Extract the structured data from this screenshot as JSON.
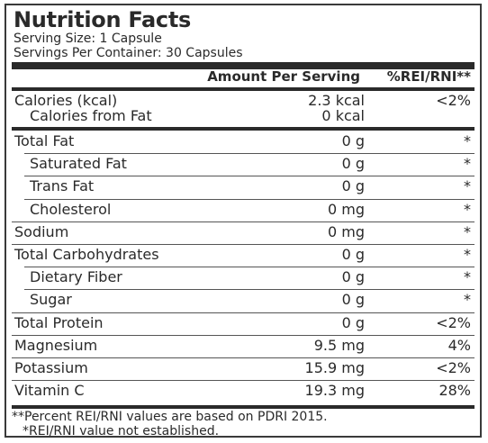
{
  "title": "Nutrition Facts",
  "serving_size": "Serving Size: 1 Capsule",
  "servings_per_container": "Servings Per Container: 30 Capsules",
  "header": {
    "amount": "Amount Per Serving",
    "rei": "%REI/RNI**"
  },
  "calories": {
    "name": "Calories (kcal)",
    "amount": "2.3 kcal",
    "rei": "<2%",
    "from_fat_name": "Calories from Fat",
    "from_fat_amount": "0 kcal"
  },
  "rows": [
    {
      "name": "Total Fat",
      "amount": "0 g",
      "rei": "*",
      "indent": false
    },
    {
      "name": "Saturated Fat",
      "amount": "0 g",
      "rei": "*",
      "indent": true
    },
    {
      "name": "Trans Fat",
      "amount": "0 g",
      "rei": "*",
      "indent": true
    },
    {
      "name": "Cholesterol",
      "amount": "0 mg",
      "rei": "*",
      "indent": true
    },
    {
      "name": "Sodium",
      "amount": "0 mg",
      "rei": "*",
      "indent": false
    },
    {
      "name": "Total Carbohydrates",
      "amount": "0 g",
      "rei": "*",
      "indent": false
    },
    {
      "name": "Dietary Fiber",
      "amount": "0 g",
      "rei": "*",
      "indent": true
    },
    {
      "name": "Sugar",
      "amount": "0 g",
      "rei": "*",
      "indent": true
    },
    {
      "name": "Total Protein",
      "amount": "0 g",
      "rei": "<2%",
      "indent": false
    },
    {
      "name": "Magnesium",
      "amount": "9.5 mg",
      "rei": "4%",
      "indent": false
    },
    {
      "name": "Potassium",
      "amount": "15.9 mg",
      "rei": "<2%",
      "indent": false
    },
    {
      "name": "Vitamin C",
      "amount": "19.3 mg",
      "rei": "28%",
      "indent": false
    }
  ],
  "footnotes": {
    "line1": "**Percent REI/RNI values are based on PDRI 2015.",
    "line2": "*REI/RNI  value not established."
  }
}
